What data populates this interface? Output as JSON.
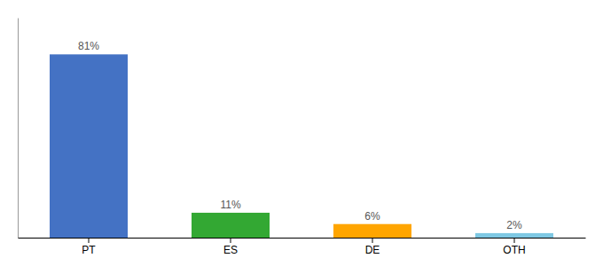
{
  "chart_data": {
    "type": "bar",
    "categories": [
      "PT",
      "ES",
      "DE",
      "OTH"
    ],
    "values": [
      81,
      11,
      6,
      2
    ],
    "value_labels": [
      "81%",
      "11%",
      "6%",
      "2%"
    ],
    "data_labels": true,
    "colors": [
      "#4472C4",
      "#33A833",
      "#FFA500",
      "#7EC8E3"
    ],
    "ylim": [
      0,
      97.2
    ],
    "tick_labels": "x"
  }
}
